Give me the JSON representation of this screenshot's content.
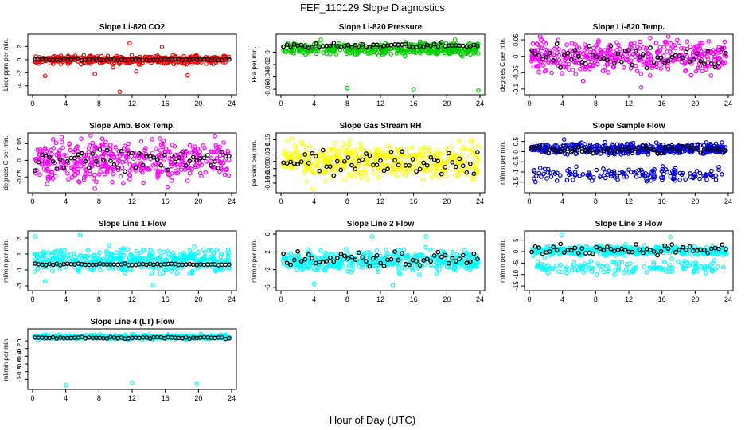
{
  "title": "FEF_110129  Slope Diagnostics",
  "xlabel": "Hour of Day (UTC)",
  "colors": {
    "ref": "#000000"
  },
  "chart_data": [
    {
      "type": "scatter",
      "title": "Slope Li-820 CO2",
      "ylabel": "Licor ppm per min.",
      "color": "#ff0000",
      "xlim": [
        0,
        24
      ],
      "ylim": [
        -5,
        3.5
      ],
      "xticks": [
        0,
        4,
        8,
        12,
        16,
        20,
        24
      ],
      "yticks": [
        -4,
        -2,
        0,
        2
      ],
      "scatter": {
        "center": 0,
        "spread": 0.5,
        "outliers": [
          [
            1.5,
            -2.5
          ],
          [
            7.5,
            -2.2
          ],
          [
            9.7,
            -1.2
          ],
          [
            10.5,
            -4.9
          ],
          [
            11.7,
            2.5
          ],
          [
            12.5,
            -1.8
          ],
          [
            15.6,
            1.9
          ],
          [
            18.7,
            -2.4
          ]
        ]
      },
      "ref": {
        "center": 0,
        "spread": 0.08
      }
    },
    {
      "type": "scatter",
      "title": "Slope Li-820 Pressure",
      "ylabel": "kPa per min.",
      "color": "#00cc00",
      "xlim": [
        0,
        24
      ],
      "ylim": [
        -0.065,
        0.025
      ],
      "xticks": [
        0,
        4,
        8,
        12,
        16,
        20,
        24
      ],
      "yticks": [
        -0.06,
        -0.04,
        -0.02,
        0
      ],
      "scatter": {
        "center": 0.005,
        "spread": 0.008,
        "outliers": [
          [
            8,
            -0.058
          ],
          [
            16,
            -0.06
          ],
          [
            23.8,
            -0.062
          ],
          [
            4.8,
            0.02
          ],
          [
            21,
            0.02
          ]
        ]
      },
      "ref": {
        "center": 0.01,
        "spread": 0.004
      }
    },
    {
      "type": "scatter",
      "title": "Slope Li-820 Temp.",
      "ylabel": "degrees C per min.",
      "color": "#ff00ff",
      "xlim": [
        0,
        24
      ],
      "ylim": [
        -0.11,
        0.06
      ],
      "xticks": [
        0,
        4,
        8,
        12,
        16,
        20,
        24
      ],
      "yticks": [
        -0.1,
        -0.05,
        0,
        0.05
      ],
      "scatter": {
        "center": 0,
        "spread": 0.04,
        "outliers": [
          [
            6.5,
            -0.075
          ],
          [
            13.5,
            -0.095
          ],
          [
            3.5,
            0.05
          ]
        ]
      },
      "ref": {
        "center": 0,
        "spread": 0.03
      }
    },
    {
      "type": "scatter",
      "title": "Slope Amb. Box Temp.",
      "ylabel": "degrees C per min.",
      "color": "#ff00ff",
      "xlim": [
        0,
        24
      ],
      "ylim": [
        -0.09,
        0.075
      ],
      "xticks": [
        0,
        4,
        8,
        12,
        16,
        20,
        24
      ],
      "yticks": [
        -0.05,
        0,
        0.05
      ],
      "scatter": {
        "center": 0,
        "spread": 0.05,
        "outliers": [
          [
            3.5,
            0.07
          ],
          [
            7.5,
            -0.085
          ],
          [
            8.4,
            0.065
          ]
        ]
      },
      "ref": {
        "center": 0,
        "spread": 0.035
      }
    },
    {
      "type": "scatter",
      "title": "Slope Gas Stream RH",
      "ylabel": "percent per min.",
      "color": "#ffff00",
      "xlim": [
        0,
        24
      ],
      "ylim": [
        -0.2,
        0.18
      ],
      "xticks": [
        0,
        4,
        8,
        12,
        16,
        20,
        24
      ],
      "yticks": [
        -0.15,
        -0.1,
        -0.05,
        0,
        0.05,
        0.1,
        0.15
      ],
      "scatter": {
        "center": 0,
        "spread": 0.1,
        "outliers": [
          [
            1.3,
            0.16
          ],
          [
            3.8,
            -0.19
          ],
          [
            23,
            0.15
          ]
        ]
      },
      "ref": {
        "center": 0,
        "spread": 0.07
      }
    },
    {
      "type": "scatter",
      "title": "Slope Sample Flow",
      "ylabel": "ml/min per min.",
      "color": "#0000cc",
      "xlim": [
        0,
        24
      ],
      "ylim": [
        -1.9,
        0.8
      ],
      "xticks": [
        0,
        4,
        8,
        12,
        16,
        20,
        24
      ],
      "yticks": [
        -1.5,
        -1,
        -0.5,
        0,
        0.5
      ],
      "scatter": {
        "center": 0.15,
        "spread": 0.22,
        "band2": {
          "center": -1.1,
          "spread": 0.3
        },
        "outliers": [
          [
            4.2,
            0.6
          ]
        ]
      },
      "ref": {
        "center": 0.1,
        "spread": 0.2
      }
    },
    {
      "type": "scatter",
      "title": "Slope Line 1 Flow",
      "ylabel": "ml/min per min.",
      "color": "#00ffff",
      "xlim": [
        0,
        24
      ],
      "ylim": [
        -3.3,
        3.6
      ],
      "xticks": [
        0,
        4,
        8,
        12,
        16,
        20,
        24
      ],
      "yticks": [
        -3,
        -1,
        1,
        3
      ],
      "scatter": {
        "center": 0.2,
        "spread": 1.2,
        "outliers": [
          [
            0.3,
            3.2
          ],
          [
            5.7,
            3.4
          ],
          [
            14.5,
            -2.9
          ],
          [
            1.5,
            -2.4
          ]
        ]
      },
      "ref": {
        "center": -0.3,
        "spread": 0.08
      }
    },
    {
      "type": "scatter",
      "title": "Slope Line 2 Flow",
      "ylabel": "ml/min per min.",
      "color": "#00ffff",
      "xlim": [
        0,
        24
      ],
      "ylim": [
        -6.2,
        6.2
      ],
      "xticks": [
        0,
        4,
        8,
        12,
        16,
        20,
        24
      ],
      "yticks": [
        -6,
        -2,
        2,
        6
      ],
      "scatter": {
        "center": 0,
        "spread": 2.0,
        "outliers": [
          [
            11,
            5.5
          ],
          [
            17.5,
            5.5
          ],
          [
            13.5,
            -5.5
          ],
          [
            4,
            -5.2
          ]
        ]
      },
      "ref": {
        "center": 0.3,
        "spread": 1.6
      }
    },
    {
      "type": "scatter",
      "title": "Slope Line 3 Flow",
      "ylabel": "ml/min per min.",
      "color": "#00ffff",
      "xlim": [
        0,
        24
      ],
      "ylim": [
        -16,
        8
      ],
      "xticks": [
        0,
        4,
        8,
        12,
        16,
        20,
        24
      ],
      "yticks": [
        -15,
        -10,
        -5,
        0,
        5
      ],
      "scatter": {
        "center": 0.5,
        "spread": 1.6,
        "band2": {
          "center": -6.5,
          "spread": 2.5
        },
        "outliers": [
          [
            3.9,
            7.5
          ],
          [
            17,
            6.5
          ]
        ]
      },
      "ref": {
        "center": 1,
        "spread": 1.8
      }
    },
    {
      "type": "scatter",
      "title": "Slope Line 4 (LT) Flow",
      "ylabel": "ml/min per min.",
      "color": "#00ffff",
      "xlim": [
        0,
        24
      ],
      "ylim": [
        -1.2,
        0.25
      ],
      "xticks": [
        0,
        4,
        8,
        12,
        16,
        20,
        24
      ],
      "yticks": [
        -1,
        -0.8,
        -0.6,
        -0.4,
        -0.2,
        0
      ],
      "scatter": {
        "center": 0.1,
        "spread": 0.05,
        "outliers": [
          [
            4,
            -1.15
          ],
          [
            12,
            -1.1
          ],
          [
            19.8,
            -1.12
          ]
        ]
      },
      "ref": {
        "center": 0.08,
        "spread": 0.02
      }
    }
  ]
}
